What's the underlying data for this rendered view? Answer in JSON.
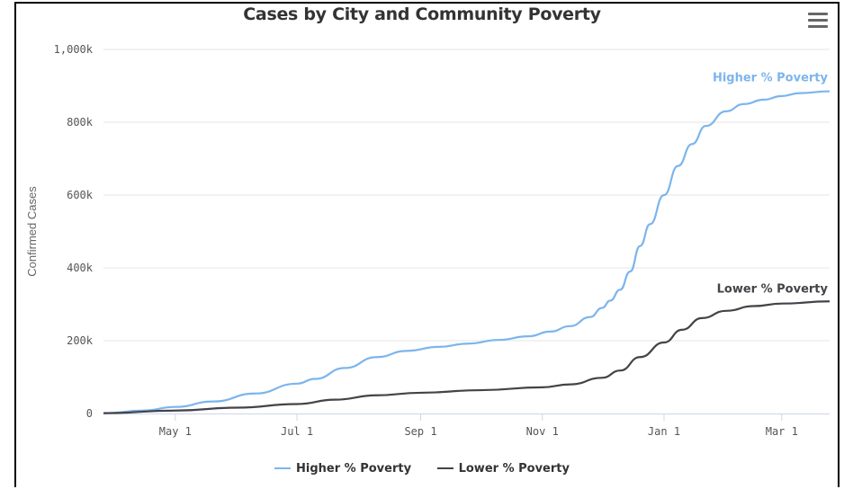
{
  "chart_data": {
    "type": "line",
    "title": "Cases by City and Community Poverty",
    "xlabel": "",
    "ylabel": "Confirmed Cases",
    "x_ticks": [
      "May 1",
      "Jul 1",
      "Sep 1",
      "Nov 1",
      "Jan 1",
      "Mar 1"
    ],
    "y_ticks": [
      "0",
      "200k",
      "400k",
      "600k",
      "800k",
      "1,000k"
    ],
    "ylim": [
      0,
      1000000
    ],
    "xlim": [
      "2020-03-26",
      "2021-03-25"
    ],
    "grid": true,
    "legend_position": "bottom",
    "series": [
      {
        "name": "Higher % Poverty",
        "color": "#7cb5ec",
        "x": [
          "2020-03-26",
          "2020-04-15",
          "2020-05-01",
          "2020-05-20",
          "2020-06-10",
          "2020-07-01",
          "2020-07-10",
          "2020-07-25",
          "2020-08-10",
          "2020-08-25",
          "2020-09-10",
          "2020-09-25",
          "2020-10-10",
          "2020-10-25",
          "2020-11-05",
          "2020-11-15",
          "2020-11-25",
          "2020-12-01",
          "2020-12-05",
          "2020-12-10",
          "2020-12-15",
          "2020-12-20",
          "2020-12-25",
          "2021-01-01",
          "2021-01-08",
          "2021-01-15",
          "2021-01-22",
          "2021-02-01",
          "2021-02-10",
          "2021-02-20",
          "2021-03-01",
          "2021-03-10",
          "2021-03-25"
        ],
        "values": [
          1000,
          8000,
          18000,
          33000,
          55000,
          82000,
          95000,
          125000,
          155000,
          172000,
          183000,
          192000,
          202000,
          212000,
          225000,
          240000,
          265000,
          290000,
          310000,
          340000,
          390000,
          460000,
          520000,
          600000,
          680000,
          740000,
          790000,
          830000,
          850000,
          862000,
          872000,
          880000,
          885000
        ]
      },
      {
        "name": "Lower % Poverty",
        "color": "#434348",
        "x": [
          "2020-03-26",
          "2020-05-01",
          "2020-06-01",
          "2020-07-01",
          "2020-07-20",
          "2020-08-10",
          "2020-09-01",
          "2020-10-01",
          "2020-11-01",
          "2020-11-15",
          "2020-12-01",
          "2020-12-10",
          "2020-12-20",
          "2021-01-01",
          "2021-01-10",
          "2021-01-20",
          "2021-02-01",
          "2021-02-15",
          "2021-03-01",
          "2021-03-25"
        ],
        "values": [
          1000,
          8000,
          16000,
          26000,
          38000,
          50000,
          57000,
          64000,
          72000,
          80000,
          98000,
          118000,
          155000,
          195000,
          230000,
          262000,
          282000,
          295000,
          302000,
          308000
        ]
      }
    ],
    "annotations": [
      "Higher % Poverty",
      "Lower % Poverty"
    ]
  },
  "menu": {
    "icon": "hamburger-menu-icon"
  }
}
